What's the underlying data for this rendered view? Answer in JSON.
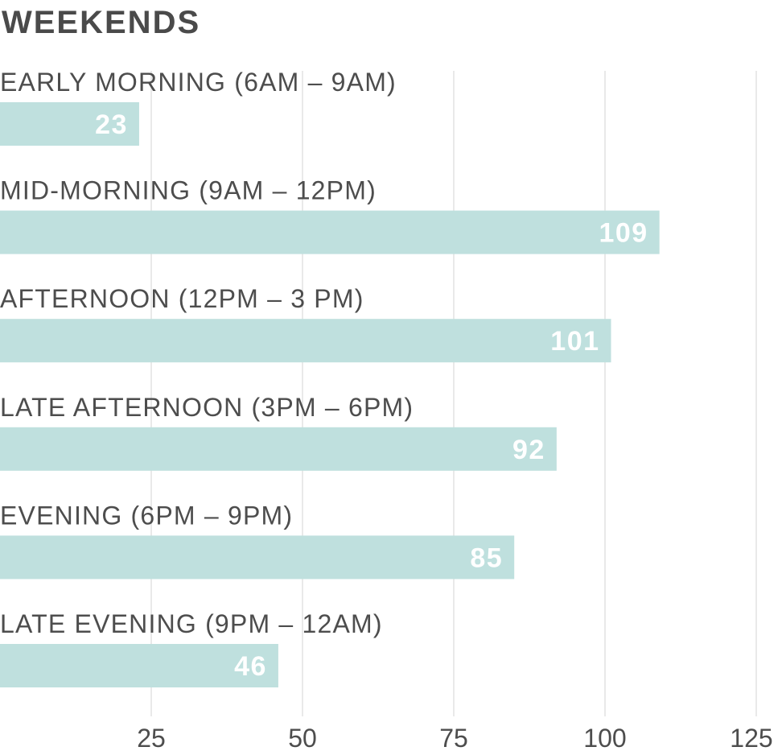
{
  "chart_data": {
    "type": "bar",
    "orientation": "horizontal",
    "title": "WEEKENDS",
    "categories": [
      "EARLY MORNING (6AM – 9AM)",
      "MID-MORNING (9AM – 12PM)",
      "AFTERNOON (12PM – 3 PM)",
      "LATE AFTERNOON (3PM – 6PM)",
      "EVENING (6PM – 9PM)",
      "LATE EVENING (9PM – 12AM)"
    ],
    "values": [
      23,
      109,
      101,
      92,
      85,
      46
    ],
    "xlim": [
      0,
      129
    ],
    "xticks": [
      25,
      50,
      75,
      100,
      125
    ],
    "grid": true,
    "legend": "none",
    "colors": {
      "bar": "#bfe0de",
      "value_label": "#ffffff",
      "category_label": "#4d4d4d",
      "tick_label": "#4d4d4d",
      "grid": "#e2e2e2",
      "title": "#4a4a4a"
    }
  }
}
